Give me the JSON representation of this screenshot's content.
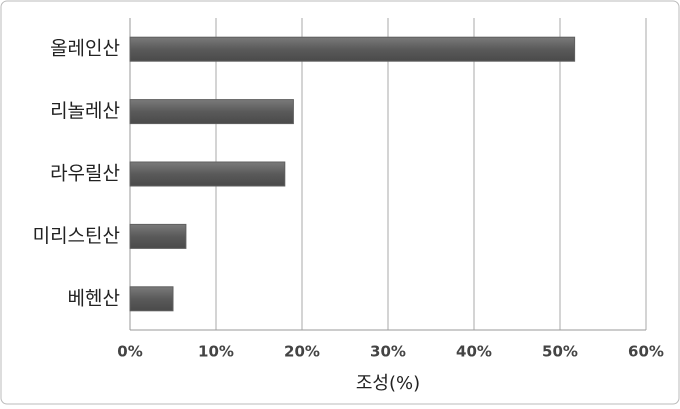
{
  "chart_data": {
    "type": "bar",
    "orientation": "horizontal",
    "categories": [
      "올레인산",
      "리놀레산",
      "라우릴산",
      "미리스틴산",
      "베헨산"
    ],
    "values": [
      51.7,
      19,
      18,
      6.5,
      5
    ],
    "color": "#5f5f5f",
    "xlabel": "조성(%)",
    "xlim": [
      0,
      60
    ],
    "xticks": [
      {
        "value": 0,
        "label": "0%"
      },
      {
        "value": 10,
        "label": "10%"
      },
      {
        "value": 20,
        "label": "20%"
      },
      {
        "value": 30,
        "label": "30%"
      },
      {
        "value": 40,
        "label": "40%"
      },
      {
        "value": 50,
        "label": "50%"
      },
      {
        "value": 60,
        "label": "60%"
      }
    ],
    "grid": true
  }
}
